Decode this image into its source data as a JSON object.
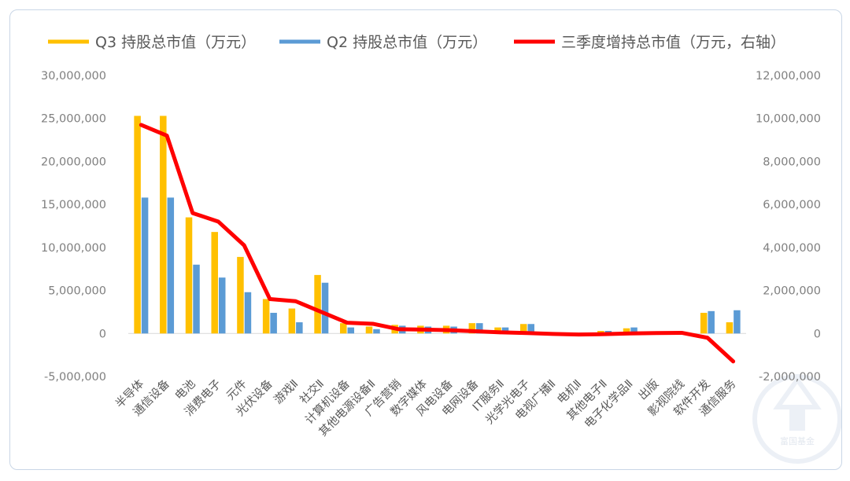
{
  "chart_data": {
    "type": "bar",
    "categories": [
      "半导体",
      "通信设备",
      "电池",
      "消费电子",
      "元件",
      "光伏设备",
      "游戏Ⅱ",
      "社交Ⅱ",
      "计算机设备",
      "其他电源设备Ⅱ",
      "广告营销",
      "数字媒体",
      "风电设备",
      "电网设备",
      "IT服务Ⅱ",
      "光学光电子",
      "电视广播Ⅱ",
      "电机Ⅱ",
      "其他电子Ⅱ",
      "电子化学品Ⅱ",
      "出版",
      "影视院线",
      "软件开发",
      "通信服务"
    ],
    "series": [
      {
        "name": "Q3 持股总市值（万元）",
        "type": "bar",
        "axis": "left",
        "color": "#FFC000",
        "values": [
          25300000,
          25300000,
          13500000,
          11800000,
          8900000,
          4000000,
          2900000,
          6800000,
          1200000,
          800000,
          1000000,
          900000,
          900000,
          1200000,
          700000,
          1100000,
          0,
          100000,
          300000,
          600000,
          0,
          0,
          2400000,
          1300000
        ]
      },
      {
        "name": "Q2 持股总市值（万元）",
        "type": "bar",
        "axis": "left",
        "color": "#5B9BD5",
        "values": [
          15800000,
          15800000,
          8000000,
          6500000,
          4800000,
          2400000,
          1300000,
          5900000,
          700000,
          500000,
          900000,
          800000,
          800000,
          1200000,
          700000,
          1100000,
          0,
          100000,
          300000,
          700000,
          0,
          0,
          2600000,
          2700000
        ]
      },
      {
        "name": "三季度增持总市值（万元，右轴）",
        "type": "line",
        "axis": "right",
        "color": "#FF0000",
        "values": [
          9700000,
          9200000,
          5600000,
          5200000,
          4100000,
          1600000,
          1500000,
          1000000,
          500000,
          450000,
          200000,
          180000,
          150000,
          100000,
          50000,
          20000,
          -20000,
          -50000,
          -30000,
          0,
          20000,
          30000,
          -200000,
          -1300000
        ]
      }
    ],
    "yleft": {
      "ticks": [
        "-5,000,000",
        "0",
        "5,000,000",
        "10,000,000",
        "15,000,000",
        "20,000,000",
        "25,000,000",
        "30,000,000"
      ],
      "ylim": [
        -5000000,
        30000000
      ]
    },
    "yright": {
      "ticks": [
        "-2,000,000",
        "0",
        "2,000,000",
        "4,000,000",
        "6,000,000",
        "8,000,000",
        "10,000,000",
        "12,000,000"
      ],
      "ylim": [
        -2000000,
        12000000
      ]
    },
    "grid": false,
    "legend": "top"
  },
  "watermark_text": "富国基金"
}
